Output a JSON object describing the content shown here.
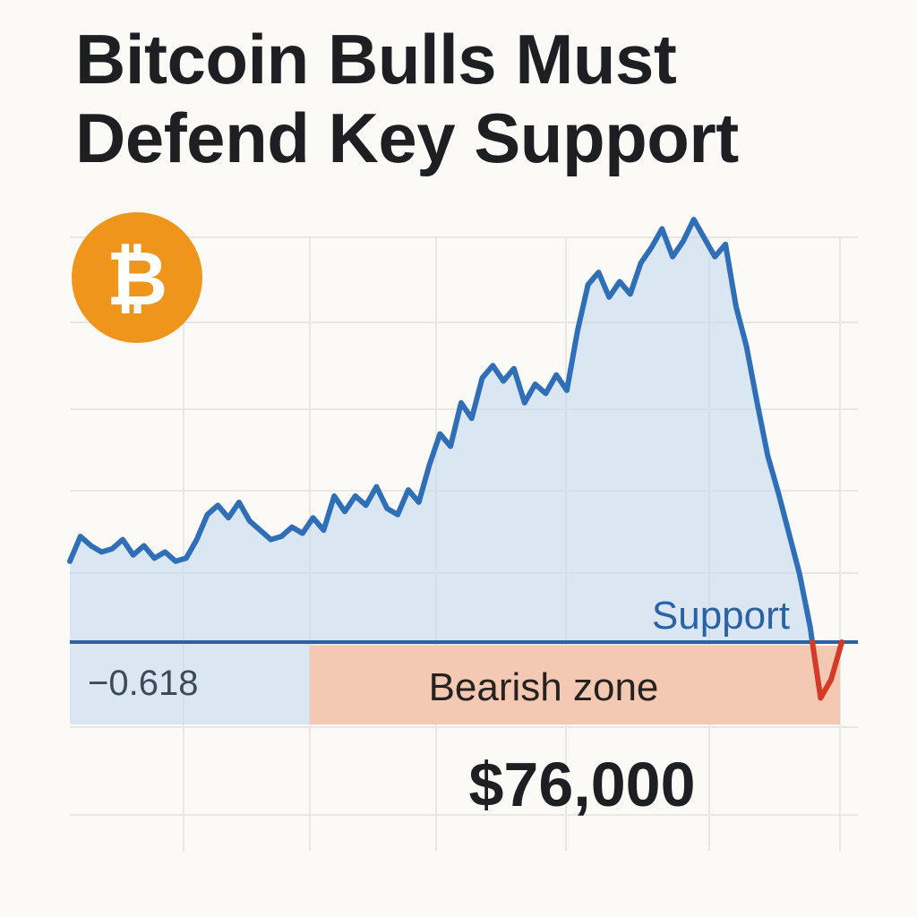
{
  "headline": {
    "line1": "Bitcoin Bulls Must",
    "line2": "Defend Key Support"
  },
  "logo": {
    "icon": "bitcoin-icon",
    "symbol": "₿",
    "color": "#f0951c"
  },
  "chart_data": {
    "type": "area",
    "title": "",
    "xlabel": "",
    "ylabel": "",
    "grid": true,
    "colors": {
      "line": "#2f6fb8",
      "fill": "#c5d9ee",
      "support": "#2a62a8",
      "bearish_zone": "#f4c9b3",
      "breakdown": "#d43a26"
    },
    "series": [
      {
        "values": [
          0.26,
          0.34,
          0.31,
          0.29,
          0.3,
          0.33,
          0.28,
          0.31,
          0.27,
          0.29,
          0.26,
          0.27,
          0.33,
          0.41,
          0.44,
          0.4,
          0.45,
          0.39,
          0.36,
          0.33,
          0.34,
          0.37,
          0.35,
          0.4,
          0.36,
          0.47,
          0.42,
          0.47,
          0.44,
          0.5,
          0.43,
          0.41,
          0.49,
          0.45,
          0.57,
          0.67,
          0.63,
          0.77,
          0.72,
          0.85,
          0.89,
          0.84,
          0.88,
          0.77,
          0.83,
          0.8,
          0.86,
          0.81,
          1.0,
          1.15,
          1.19,
          1.11,
          1.16,
          1.12,
          1.22,
          1.27,
          1.33,
          1.24,
          1.29,
          1.36,
          1.3,
          1.24,
          1.28,
          1.08,
          0.95,
          0.77,
          0.6,
          0.48,
          0.35,
          0.22,
          0.05,
          -0.18,
          -0.12,
          0.0
        ]
      }
    ],
    "support": {
      "label": "Support",
      "value": 0.0
    },
    "fib_label": "−0.618",
    "bearish_zone": {
      "label": "Bearish zone"
    },
    "price_label": "$76,000"
  }
}
